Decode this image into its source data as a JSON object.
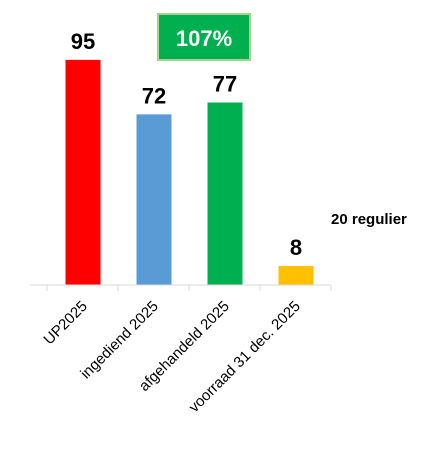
{
  "chart_data": {
    "type": "bar",
    "categories": [
      "UP2025",
      "ingediend 2025",
      "afgehandeld 2025",
      "voorraad 31 dec. 2025"
    ],
    "values": [
      95,
      72,
      77,
      8
    ],
    "colors": [
      "#ff0000",
      "#5b9bd5",
      "#00b050",
      "#ffc000"
    ],
    "ylim": [
      0,
      100
    ],
    "grid": false,
    "legend": "none"
  },
  "annotations": {
    "badge_text": "107%",
    "badge_color": "#00b050",
    "badge_border": "#a9d18e",
    "side_note": "20 regulier"
  }
}
